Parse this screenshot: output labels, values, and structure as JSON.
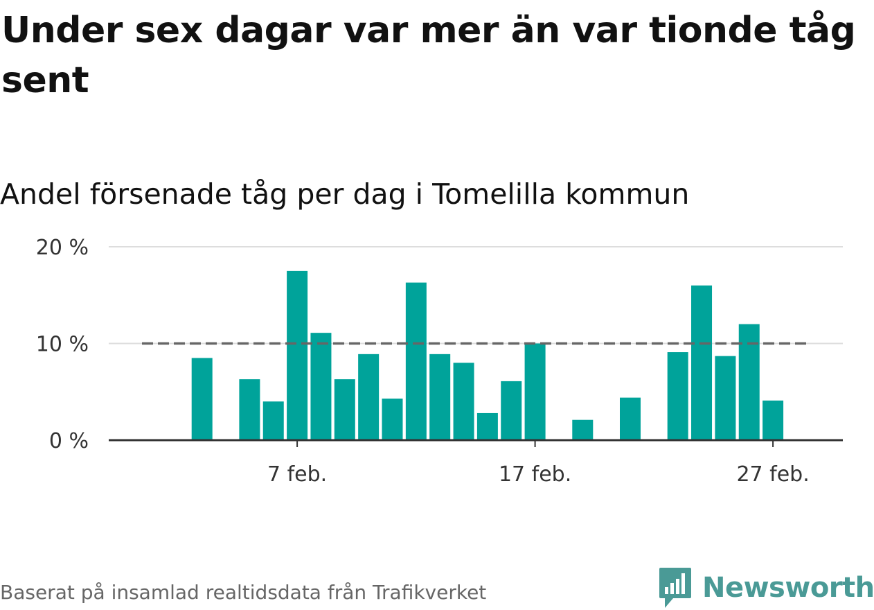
{
  "title": "Under sex dagar var mer än var tionde tåg sent",
  "subtitle": "Andel försenade tåg per dag i Tomelilla kommun",
  "source": "Baserat på insamlad realtidsdata från Trafikverket",
  "brand": {
    "name": "Newsworthy",
    "icon": "newsworthy-logo-icon",
    "color": "#4a9a96"
  },
  "colors": {
    "bar": "#00a39a",
    "reference_line": "#666666",
    "grid": "#dddddd",
    "axis": "#333333"
  },
  "chart_data": {
    "type": "bar",
    "x": [
      "2023-02-01",
      "2023-02-02",
      "2023-02-03",
      "2023-02-04",
      "2023-02-05",
      "2023-02-06",
      "2023-02-07",
      "2023-02-08",
      "2023-02-09",
      "2023-02-10",
      "2023-02-11",
      "2023-02-12",
      "2023-02-13",
      "2023-02-14",
      "2023-02-15",
      "2023-02-16",
      "2023-02-17",
      "2023-02-18",
      "2023-02-19",
      "2023-02-20",
      "2023-02-21",
      "2023-02-22",
      "2023-02-23",
      "2023-02-24",
      "2023-02-25",
      "2023-02-26",
      "2023-02-27",
      "2023-02-28"
    ],
    "values": [
      0,
      0,
      8.5,
      0,
      6.3,
      4.0,
      17.5,
      11.1,
      6.3,
      8.9,
      4.3,
      16.3,
      8.9,
      8.0,
      2.8,
      6.1,
      10.0,
      0,
      2.1,
      0,
      4.4,
      0,
      9.1,
      16.0,
      8.7,
      12.0,
      4.1,
      0
    ],
    "unit": "%",
    "ylim": [
      0,
      20
    ],
    "yticks": [
      0,
      10,
      20
    ],
    "ytick_labels": [
      "0 %",
      "10 %",
      "20 %"
    ],
    "xticks": [
      "2023-02-07",
      "2023-02-17",
      "2023-02-27"
    ],
    "xtick_labels": [
      "7 feb.",
      "17 feb.",
      "27 feb."
    ],
    "reference_line": {
      "value": 10,
      "style": "dashed"
    },
    "grid": true,
    "legend": "none"
  }
}
